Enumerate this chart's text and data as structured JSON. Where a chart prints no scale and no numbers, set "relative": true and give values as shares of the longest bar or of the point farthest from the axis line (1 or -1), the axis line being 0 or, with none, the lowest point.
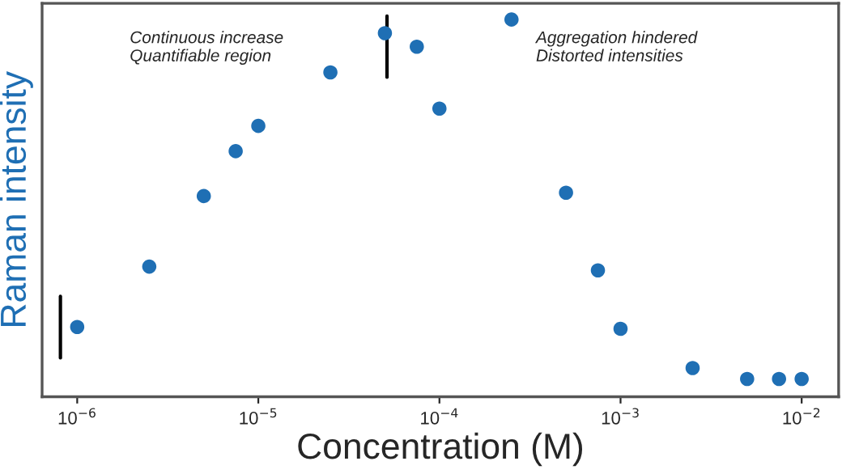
{
  "chart_data": {
    "type": "scatter",
    "relative": true,
    "xlabel": "Concentration (M)",
    "ylabel": "Raman intensity",
    "log": "x",
    "xlim": [
      6.4e-07,
      0.016
    ],
    "xticks": [
      {
        "value": 1e-06,
        "label": "10$^{−6}$"
      },
      {
        "value": 1e-05,
        "label": "10$^{−5}$"
      },
      {
        "value": 0.0001,
        "label": "10$^{−4}$"
      },
      {
        "value": 0.001,
        "label": "10$^{−3}$"
      },
      {
        "value": 0.01,
        "label": "10$^{−2}$"
      }
    ],
    "x": [
      1e-06,
      2.5e-06,
      5e-06,
      7.5e-06,
      1e-05,
      2.5e-05,
      5e-05,
      7.5e-05,
      0.0001,
      0.00025,
      0.0005,
      0.00075,
      0.001,
      0.0025,
      0.005,
      0.0075,
      0.01
    ],
    "series": [
      {
        "color": "#1f6fb4",
        "values": [
          0.185,
          0.345,
          0.532,
          0.651,
          0.718,
          0.86,
          0.964,
          0.928,
          0.764,
          1,
          0.541,
          0.335,
          0.18,
          0.076,
          0.047,
          0.047,
          0.047
        ]
      }
    ],
    "annotations": [
      "Continuous increase\nQuantifiable region",
      "Aggregation hindered\nDistorted intensities"
    ],
    "grid": false,
    "marker": "circle"
  }
}
